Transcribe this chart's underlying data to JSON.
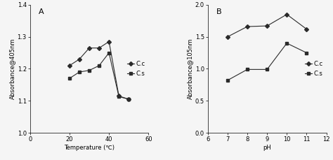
{
  "panel_A": {
    "label": "A",
    "x_cc": [
      20,
      25,
      30,
      35,
      40,
      45,
      50
    ],
    "y_cc": [
      1.21,
      1.23,
      1.265,
      1.265,
      1.285,
      1.115,
      1.105
    ],
    "x_cs": [
      20,
      25,
      30,
      35,
      40,
      45,
      50
    ],
    "y_cs": [
      1.17,
      1.19,
      1.195,
      1.21,
      1.25,
      1.113,
      1.105
    ],
    "xlabel": "Temperature (℃)",
    "ylabel": "Absorbance@405nm",
    "xlim": [
      0,
      60
    ],
    "ylim": [
      1.0,
      1.4
    ],
    "yticks": [
      1.0,
      1.1,
      1.2,
      1.3,
      1.4
    ],
    "xticks": [
      0,
      20,
      40,
      60
    ],
    "legend_loc": "center right"
  },
  "panel_B": {
    "label": "B",
    "x_cc": [
      7,
      8,
      9,
      10,
      11
    ],
    "y_cc": [
      1.5,
      1.66,
      1.67,
      1.85,
      1.62
    ],
    "x_cs": [
      7,
      8,
      9,
      10,
      11
    ],
    "y_cs": [
      0.82,
      0.99,
      0.99,
      1.4,
      1.25
    ],
    "xlabel": "pH",
    "ylabel": "Absorbance@105nm",
    "xlim": [
      6,
      12
    ],
    "ylim": [
      0.0,
      2.0
    ],
    "yticks": [
      0.0,
      0.5,
      1.0,
      1.5,
      2.0
    ],
    "xticks": [
      6,
      7,
      8,
      9,
      10,
      11,
      12
    ],
    "legend_loc": "center right"
  },
  "legend_cc": "C.c",
  "legend_cs": "C.s",
  "line_color": "#2a2a2a",
  "marker_cc": "D",
  "marker_cs": "s",
  "marker_size": 3,
  "marker_size_B": 3,
  "linewidth": 0.8,
  "bg_color": "#f5f5f5",
  "fontsize_label": 6,
  "fontsize_tick": 6,
  "fontsize_legend": 6,
  "fontsize_panel_label": 8
}
